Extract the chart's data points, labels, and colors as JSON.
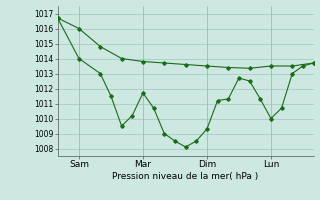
{
  "title": "Pression niveau de la mer( hPa )",
  "ylabel_ticks": [
    1008,
    1009,
    1010,
    1011,
    1012,
    1013,
    1014,
    1015,
    1016,
    1017
  ],
  "ylim": [
    1007.5,
    1017.5
  ],
  "xlim": [
    0,
    96
  ],
  "xtick_positions": [
    8,
    32,
    56,
    80
  ],
  "xtick_labels": [
    "Sam",
    "Mar",
    "Dim",
    "Lun"
  ],
  "bg_color": "#cce8e0",
  "line_color": "#1a6b1a",
  "grid_color": "#99bbbb",
  "line1_x": [
    0,
    8,
    16,
    24,
    32,
    40,
    48,
    56,
    64,
    72,
    80,
    88,
    96
  ],
  "line1_y": [
    1016.7,
    1016.0,
    1014.8,
    1014.0,
    1013.8,
    1013.7,
    1013.6,
    1013.5,
    1013.4,
    1013.35,
    1013.5,
    1013.5,
    1013.7
  ],
  "line2_x": [
    0,
    8,
    16,
    20,
    24,
    28,
    32,
    36,
    40,
    44,
    48,
    52,
    56,
    60,
    64,
    68,
    72,
    76,
    80,
    84,
    88,
    92,
    96
  ],
  "line2_y": [
    1016.7,
    1014.0,
    1013.0,
    1011.5,
    1009.5,
    1010.2,
    1011.7,
    1010.7,
    1009.0,
    1008.5,
    1008.1,
    1008.5,
    1009.3,
    1011.2,
    1011.3,
    1012.7,
    1012.5,
    1011.3,
    1010.0,
    1010.7,
    1013.0,
    1013.5,
    1013.7
  ]
}
